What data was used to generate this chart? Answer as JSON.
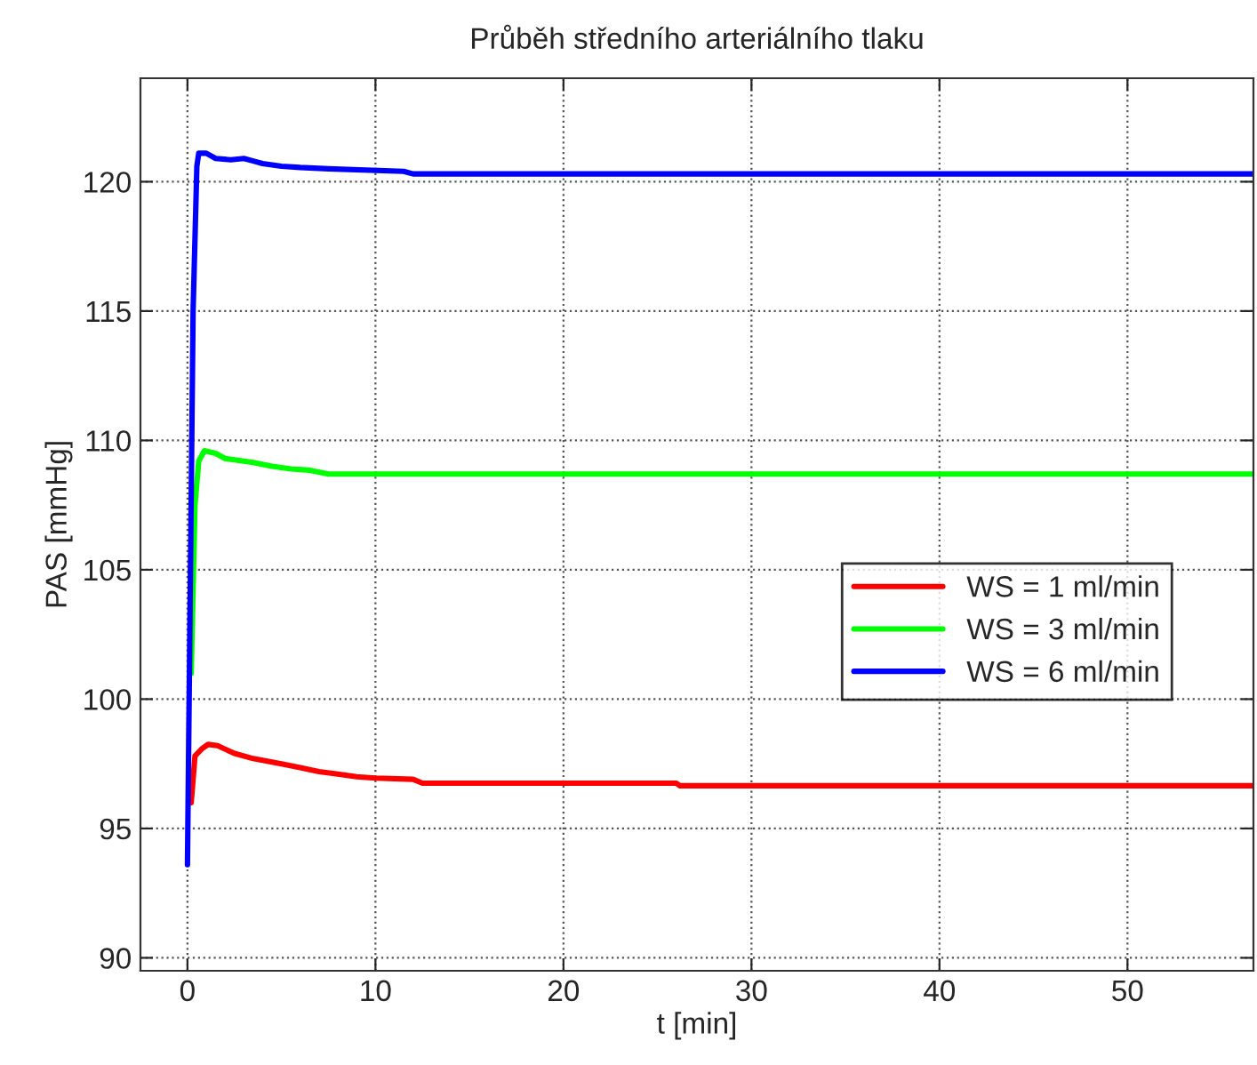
{
  "chart_data": {
    "type": "line",
    "title": "Průběh středního arteriálního tlaku",
    "xlabel": "t [min]",
    "ylabel": "PAS [mmHg]",
    "xlim": [
      -2.5,
      56.7
    ],
    "xticks": [
      0,
      10,
      20,
      30,
      40,
      50
    ],
    "ylim": [
      89.5,
      124
    ],
    "yticks": [
      90,
      95,
      100,
      105,
      110,
      115,
      120
    ],
    "grid": true,
    "legend": "right",
    "line_style": "solid",
    "marker": "none",
    "series": [
      {
        "name": "WS = 1 ml/min",
        "color": "#ff0000",
        "x": [
          0.2,
          0.4,
          0.8,
          1.1,
          1.6,
          2.5,
          3.5,
          5,
          6,
          7,
          8,
          9,
          10,
          12,
          12.5,
          26,
          26.2,
          56.7
        ],
        "values": [
          96,
          97.8,
          98.1,
          98.25,
          98.2,
          97.9,
          97.7,
          97.5,
          97.35,
          97.2,
          97.1,
          97.0,
          96.95,
          96.9,
          96.75,
          96.75,
          96.65,
          96.65
        ]
      },
      {
        "name": "WS = 3 ml/min",
        "color": "#00ff00",
        "x": [
          0.2,
          0.4,
          0.6,
          0.9,
          1.5,
          2,
          3,
          3.5,
          4.5,
          5.5,
          6.5,
          7.5,
          56.7
        ],
        "values": [
          101,
          107.5,
          109.2,
          109.6,
          109.5,
          109.3,
          109.2,
          109.15,
          109.0,
          108.9,
          108.85,
          108.7,
          108.7
        ]
      },
      {
        "name": "WS = 6 ml/min",
        "color": "#0000ff",
        "x": [
          0,
          0.3,
          0.5,
          0.6,
          1.0,
          1.5,
          2.3,
          3.0,
          3.5,
          4,
          5,
          6,
          7.5,
          11.5,
          12,
          56.7
        ],
        "values": [
          93.6,
          115,
          120.6,
          121.1,
          121.1,
          120.9,
          120.85,
          120.9,
          120.8,
          120.7,
          120.6,
          120.55,
          120.5,
          120.4,
          120.3,
          120.3
        ]
      }
    ]
  }
}
